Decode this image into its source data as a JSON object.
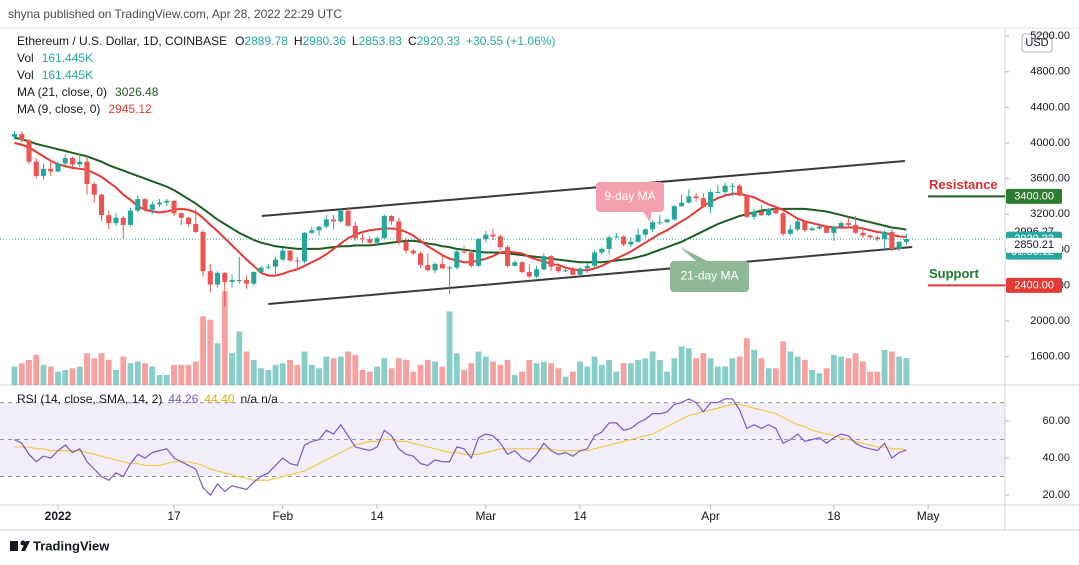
{
  "chart_data": {
    "type": "candlestick",
    "title": "shyna published on TradingView.com, Apr 28, 2022 22:29 UTC",
    "symbol": "Ethereum / U.S. Dollar, 1D, COINBASE",
    "ohlc_keys": [
      "O",
      "H",
      "L",
      "C"
    ],
    "change": "+30.55 (+1.06%)",
    "volume_legend": {
      "label": "Vol",
      "value": "161.445K"
    },
    "ma21_label": "MA (21, close, 0)",
    "ma9_label": "MA (9, close, 0)",
    "rsi_legend": {
      "label": "RSI (14, close, SMA, 14, 2)",
      "sma": "44.40",
      "extra": [
        "n/a",
        "n/a"
      ]
    },
    "currency": "USD",
    "logo": "TradingView",
    "up_color": "#26a69a",
    "down_color": "#ef5350",
    "ma21_color": "#1b5e20",
    "ma9_color": "#e53935",
    "rsi_color": "#7e57c2",
    "rsi_sma_color": "#f2c94c",
    "ohlc": [
      [
        4070,
        4130,
        4040,
        4100
      ],
      [
        4100,
        4130,
        4010,
        4030
      ],
      [
        4030,
        4040,
        3760,
        3790
      ],
      [
        3790,
        3830,
        3600,
        3630
      ],
      [
        3630,
        3770,
        3590,
        3710
      ],
      [
        3710,
        3810,
        3630,
        3680
      ],
      [
        3680,
        3790,
        3670,
        3770
      ],
      [
        3770,
        3870,
        3720,
        3830
      ],
      [
        3830,
        3850,
        3700,
        3760
      ],
      [
        3760,
        3880,
        3730,
        3790
      ],
      [
        3790,
        3850,
        3420,
        3540
      ],
      [
        3540,
        3560,
        3330,
        3420
      ],
      [
        3420,
        3430,
        3120,
        3190
      ],
      [
        3190,
        3240,
        3030,
        3100
      ],
      [
        3100,
        3210,
        3070,
        3160
      ],
      [
        3160,
        3180,
        2930,
        3080
      ],
      [
        3080,
        3270,
        3060,
        3240
      ],
      [
        3240,
        3410,
        3220,
        3370
      ],
      [
        3370,
        3380,
        3230,
        3250
      ],
      [
        3250,
        3340,
        3200,
        3310
      ],
      [
        3310,
        3370,
        3280,
        3330
      ],
      [
        3330,
        3370,
        3290,
        3350
      ],
      [
        3350,
        3360,
        3180,
        3210
      ],
      [
        3210,
        3220,
        3080,
        3160
      ],
      [
        3160,
        3170,
        3060,
        3090
      ],
      [
        3090,
        3260,
        2990,
        3000
      ],
      [
        3000,
        3020,
        2500,
        2560
      ],
      [
        2560,
        2640,
        2320,
        2410
      ],
      [
        2410,
        2560,
        2380,
        2540
      ],
      [
        2540,
        2550,
        2160,
        2440
      ],
      [
        2440,
        2520,
        2380,
        2460
      ],
      [
        2460,
        2720,
        2420,
        2460
      ],
      [
        2460,
        2510,
        2360,
        2420
      ],
      [
        2420,
        2560,
        2400,
        2550
      ],
      [
        2550,
        2620,
        2530,
        2600
      ],
      [
        2600,
        2640,
        2580,
        2610
      ],
      [
        2610,
        2720,
        2530,
        2690
      ],
      [
        2690,
        2820,
        2670,
        2790
      ],
      [
        2790,
        2800,
        2660,
        2680
      ],
      [
        2680,
        2720,
        2590,
        2670
      ],
      [
        2670,
        3000,
        2650,
        2990
      ],
      [
        2990,
        3060,
        2980,
        3020
      ],
      [
        3020,
        3070,
        2960,
        3060
      ],
      [
        3060,
        3190,
        3040,
        3140
      ],
      [
        3140,
        3190,
        3030,
        3120
      ],
      [
        3120,
        3260,
        3100,
        3240
      ],
      [
        3240,
        3280,
        3060,
        3070
      ],
      [
        3070,
        3110,
        2900,
        2930
      ],
      [
        2930,
        2980,
        2880,
        2920
      ],
      [
        2920,
        2950,
        2850,
        2880
      ],
      [
        2880,
        2950,
        2840,
        2930
      ],
      [
        2930,
        3200,
        2920,
        3180
      ],
      [
        3180,
        3190,
        3080,
        3120
      ],
      [
        3120,
        3160,
        2860,
        2890
      ],
      [
        2890,
        2930,
        2760,
        2790
      ],
      [
        2790,
        2810,
        2740,
        2760
      ],
      [
        2760,
        2780,
        2600,
        2630
      ],
      [
        2630,
        2760,
        2560,
        2570
      ],
      [
        2570,
        2660,
        2540,
        2640
      ],
      [
        2640,
        2740,
        2590,
        2590
      ],
      [
        2590,
        2620,
        2300,
        2600
      ],
      [
        2600,
        2800,
        2580,
        2780
      ],
      [
        2780,
        2840,
        2760,
        2770
      ],
      [
        2770,
        2800,
        2600,
        2620
      ],
      [
        2620,
        2930,
        2610,
        2920
      ],
      [
        2920,
        3010,
        2880,
        2970
      ],
      [
        2970,
        3040,
        2910,
        2950
      ],
      [
        2950,
        2970,
        2800,
        2830
      ],
      [
        2830,
        2850,
        2600,
        2620
      ],
      [
        2620,
        2680,
        2610,
        2660
      ],
      [
        2660,
        2670,
        2540,
        2550
      ],
      [
        2550,
        2640,
        2480,
        2500
      ],
      [
        2500,
        2620,
        2480,
        2580
      ],
      [
        2580,
        2760,
        2570,
        2730
      ],
      [
        2730,
        2740,
        2560,
        2610
      ],
      [
        2610,
        2650,
        2540,
        2560
      ],
      [
        2560,
        2600,
        2550,
        2570
      ],
      [
        2570,
        2610,
        2510,
        2520
      ],
      [
        2520,
        2600,
        2500,
        2590
      ],
      [
        2590,
        2650,
        2540,
        2620
      ],
      [
        2620,
        2790,
        2600,
        2770
      ],
      [
        2770,
        2830,
        2750,
        2810
      ],
      [
        2810,
        2960,
        2750,
        2940
      ],
      [
        2940,
        2990,
        2930,
        2950
      ],
      [
        2950,
        2960,
        2840,
        2860
      ],
      [
        2860,
        2940,
        2830,
        2890
      ],
      [
        2890,
        3040,
        2880,
        2970
      ],
      [
        2970,
        3040,
        2940,
        3030
      ],
      [
        3030,
        3130,
        3000,
        3110
      ],
      [
        3110,
        3190,
        3080,
        3110
      ],
      [
        3110,
        3150,
        3100,
        3140
      ],
      [
        3140,
        3300,
        3130,
        3290
      ],
      [
        3290,
        3420,
        3280,
        3330
      ],
      [
        3330,
        3480,
        3320,
        3400
      ],
      [
        3400,
        3440,
        3340,
        3380
      ],
      [
        3380,
        3440,
        3270,
        3280
      ],
      [
        3280,
        3470,
        3210,
        3450
      ],
      [
        3450,
        3530,
        3440,
        3450
      ],
      [
        3450,
        3550,
        3420,
        3520
      ],
      [
        3520,
        3550,
        3400,
        3520
      ],
      [
        3520,
        3540,
        3400,
        3410
      ],
      [
        3410,
        3420,
        3160,
        3170
      ],
      [
        3170,
        3260,
        3140,
        3230
      ],
      [
        3230,
        3300,
        3180,
        3190
      ],
      [
        3190,
        3270,
        3180,
        3260
      ],
      [
        3260,
        3300,
        3200,
        3210
      ],
      [
        3210,
        3230,
        2950,
        2980
      ],
      [
        2980,
        3080,
        2960,
        3030
      ],
      [
        3030,
        3140,
        3010,
        3120
      ],
      [
        3120,
        3130,
        3000,
        3020
      ],
      [
        3020,
        3060,
        3010,
        3040
      ],
      [
        3040,
        3080,
        3030,
        3060
      ],
      [
        3060,
        3080,
        2990,
        2990
      ],
      [
        2990,
        3070,
        2900,
        3060
      ],
      [
        3060,
        3120,
        3030,
        3100
      ],
      [
        3100,
        3170,
        3040,
        3080
      ],
      [
        3080,
        3180,
        2980,
        2990
      ],
      [
        2990,
        3030,
        2930,
        2960
      ],
      [
        2960,
        2970,
        2920,
        2940
      ],
      [
        2940,
        2960,
        2900,
        2920
      ],
      [
        2920,
        3020,
        2800,
        3000
      ],
      [
        3000,
        3030,
        2780,
        2810
      ],
      [
        2810,
        2900,
        2790,
        2889.78
      ],
      [
        2889.78,
        2980.36,
        2853.83,
        2920.33
      ]
    ],
    "volume": [
      110,
      130,
      150,
      180,
      120,
      110,
      80,
      90,
      100,
      110,
      190,
      160,
      190,
      150,
      90,
      170,
      130,
      140,
      130,
      110,
      60,
      60,
      120,
      120,
      120,
      140,
      410,
      390,
      250,
      560,
      190,
      320,
      200,
      150,
      100,
      90,
      120,
      130,
      150,
      120,
      200,
      120,
      100,
      170,
      160,
      170,
      200,
      180,
      90,
      80,
      110,
      160,
      100,
      160,
      150,
      80,
      120,
      150,
      140,
      110,
      440,
      190,
      90,
      130,
      200,
      170,
      140,
      120,
      150,
      60,
      80,
      150,
      130,
      140,
      130,
      100,
      50,
      80,
      140,
      110,
      170,
      120,
      150,
      80,
      130,
      130,
      150,
      160,
      200,
      150,
      80,
      160,
      230,
      220,
      160,
      190,
      160,
      110,
      110,
      160,
      170,
      280,
      210,
      160,
      100,
      100,
      260,
      200,
      170,
      150,
      90,
      70,
      100,
      180,
      170,
      160,
      190,
      140,
      80,
      80,
      210,
      200,
      170,
      161.445
    ],
    "ma21": [
      4060,
      4040,
      4020,
      3990,
      3970,
      3950,
      3930,
      3910,
      3890,
      3870,
      3850,
      3820,
      3790,
      3750,
      3720,
      3690,
      3660,
      3630,
      3600,
      3570,
      3540,
      3510,
      3470,
      3420,
      3370,
      3320,
      3260,
      3200,
      3140,
      3090,
      3040,
      2990,
      2950,
      2910,
      2880,
      2860,
      2840,
      2830,
      2820,
      2810,
      2810,
      2810,
      2810,
      2820,
      2830,
      2840,
      2840,
      2850,
      2850,
      2850,
      2860,
      2870,
      2880,
      2890,
      2900,
      2900,
      2890,
      2870,
      2860,
      2840,
      2830,
      2810,
      2800,
      2790,
      2780,
      2770,
      2770,
      2770,
      2760,
      2750,
      2740,
      2730,
      2720,
      2710,
      2700,
      2690,
      2680,
      2670,
      2660,
      2660,
      2660,
      2660,
      2670,
      2680,
      2690,
      2700,
      2720,
      2740,
      2770,
      2800,
      2830,
      2860,
      2890,
      2930,
      2970,
      3010,
      3050,
      3090,
      3120,
      3150,
      3180,
      3200,
      3220,
      3240,
      3250,
      3260,
      3260,
      3260,
      3260,
      3260,
      3250,
      3240,
      3230,
      3210,
      3190,
      3170,
      3150,
      3130,
      3110,
      3090,
      3070,
      3050,
      3040,
      3026.48
    ],
    "ma9": [
      4000,
      3980,
      3950,
      3900,
      3850,
      3800,
      3760,
      3740,
      3720,
      3710,
      3700,
      3660,
      3620,
      3560,
      3500,
      3420,
      3360,
      3290,
      3250,
      3230,
      3220,
      3230,
      3250,
      3260,
      3250,
      3220,
      3160,
      3080,
      3010,
      2930,
      2850,
      2770,
      2690,
      2620,
      2540,
      2510,
      2510,
      2530,
      2560,
      2580,
      2620,
      2660,
      2700,
      2750,
      2810,
      2870,
      2930,
      2970,
      3000,
      3020,
      3030,
      3040,
      3040,
      3030,
      3000,
      2960,
      2900,
      2840,
      2790,
      2740,
      2700,
      2680,
      2660,
      2660,
      2680,
      2700,
      2730,
      2770,
      2780,
      2770,
      2760,
      2720,
      2690,
      2670,
      2640,
      2630,
      2600,
      2580,
      2570,
      2570,
      2590,
      2620,
      2660,
      2700,
      2740,
      2780,
      2830,
      2880,
      2930,
      2980,
      3020,
      3070,
      3120,
      3170,
      3230,
      3290,
      3340,
      3380,
      3410,
      3430,
      3430,
      3410,
      3390,
      3350,
      3310,
      3280,
      3250,
      3200,
      3150,
      3120,
      3100,
      3080,
      3060,
      3050,
      3050,
      3050,
      3050,
      3040,
      3020,
      3000,
      2990,
      2970,
      2950,
      2945.12
    ],
    "rsi": [
      50,
      48,
      42,
      38,
      41,
      40,
      44,
      47,
      43,
      45,
      38,
      34,
      30,
      28,
      32,
      30,
      37,
      42,
      40,
      43,
      44,
      45,
      40,
      38,
      36,
      34,
      24,
      20,
      26,
      22,
      25,
      24,
      23,
      27,
      30,
      32,
      36,
      40,
      37,
      36,
      47,
      49,
      50,
      55,
      53,
      58,
      52,
      46,
      45,
      44,
      46,
      55,
      52,
      45,
      42,
      41,
      37,
      36,
      39,
      38,
      38,
      46,
      45,
      40,
      51,
      53,
      52,
      48,
      42,
      44,
      40,
      38,
      42,
      48,
      44,
      42,
      43,
      41,
      44,
      45,
      52,
      54,
      59,
      59,
      55,
      56,
      59,
      61,
      64,
      64,
      65,
      69,
      70,
      72,
      70,
      65,
      70,
      70,
      72,
      72,
      66,
      56,
      58,
      56,
      58,
      56,
      48,
      50,
      53,
      49,
      50,
      51,
      48,
      51,
      53,
      52,
      48,
      46,
      45,
      44,
      48,
      40,
      43,
      44.26
    ],
    "rsi_sma": [
      46,
      46,
      46,
      45,
      45,
      44,
      44,
      44,
      44,
      44,
      43,
      42,
      41,
      40,
      39,
      38,
      37,
      37,
      36,
      36,
      36,
      37,
      38,
      38,
      38,
      37,
      36,
      34,
      33,
      32,
      31,
      30,
      29,
      28,
      28,
      28,
      29,
      30,
      31,
      32,
      33,
      35,
      37,
      39,
      41,
      43,
      45,
      47,
      48,
      49,
      49,
      50,
      50,
      49,
      49,
      48,
      47,
      46,
      45,
      44,
      43,
      43,
      42,
      42,
      42,
      43,
      44,
      45,
      45,
      45,
      45,
      45,
      45,
      45,
      45,
      44,
      44,
      44,
      44,
      44,
      45,
      46,
      47,
      48,
      49,
      50,
      51,
      52,
      53,
      55,
      57,
      59,
      61,
      63,
      64,
      65,
      66,
      67,
      68,
      69,
      69,
      68,
      67,
      66,
      65,
      64,
      62,
      60,
      58,
      57,
      55,
      54,
      53,
      52,
      51,
      50,
      49,
      48,
      47,
      46,
      46,
      45,
      45,
      44.4
    ],
    "xlim": [
      -2,
      136.6
    ],
    "xticks": [
      {
        "value": 6,
        "label": "2022"
      },
      {
        "value": 22,
        "label": "17"
      },
      {
        "value": 37,
        "label": "Feb"
      },
      {
        "value": 50,
        "label": "14"
      },
      {
        "value": 65,
        "label": "Mar"
      },
      {
        "value": 78,
        "label": "14"
      },
      {
        "value": 96,
        "label": "Apr"
      },
      {
        "value": 113,
        "label": "18"
      },
      {
        "value": 126,
        "label": "May"
      }
    ],
    "ylim": [
      1281,
      5292
    ],
    "yticks": [
      {
        "value": 1600,
        "label": "1600.00"
      },
      {
        "value": 2000,
        "label": "2000.00"
      },
      {
        "value": 2400,
        "label": "2400.00"
      },
      {
        "value": 2800,
        "label": "2800.00"
      },
      {
        "value": 3200,
        "label": "3200.00"
      },
      {
        "value": 3600,
        "label": "3600.00"
      },
      {
        "value": 4000,
        "label": "4000.00"
      },
      {
        "value": 4400,
        "label": "4400.00"
      },
      {
        "value": 4800,
        "label": "4800.00"
      },
      {
        "value": 5200,
        "label": "5200.00"
      }
    ],
    "volume_lim": [
      0,
      2134
    ],
    "rsi_ylim": [
      14.6,
      79.5
    ],
    "rsi_yticks": [
      {
        "value": 20,
        "label": "20.00"
      },
      {
        "value": 40,
        "label": "40.00"
      },
      {
        "value": 60,
        "label": "60.00"
      }
    ],
    "rsi_bands": [
      30,
      50,
      70
    ],
    "grid": false,
    "badges": [
      {
        "value": 3400,
        "label": "3400.00",
        "bg": "#2e7d32",
        "fg": "#ffffff"
      },
      {
        "value": 2996.27,
        "label": "2996.27",
        "bg": "#ffffff",
        "fg": "#131722"
      },
      {
        "value": 2920.33,
        "label": "2920.33",
        "bg": "#26a69a",
        "fg": "#ffffff",
        "countdown": "01:30:12"
      },
      {
        "value": 2850.21,
        "label": "2850.21",
        "bg": "#ffffff",
        "fg": "#131722"
      },
      {
        "value": 2400,
        "label": "2400.00",
        "bg": "#e53935",
        "fg": "#ffffff"
      }
    ],
    "levels": [
      {
        "name": "Resistance",
        "value": 3400,
        "line_color": "#1b5e20",
        "text_color": "#d32f2f"
      },
      {
        "name": "Support",
        "value": 2400,
        "line_color": "#e53935",
        "text_color": "#1b7a2f"
      }
    ],
    "trendlines": [
      {
        "x": [
          34.1,
          122.8
        ],
        "y": [
          3180,
          3798
        ]
      },
      {
        "x": [
          35,
          123.8
        ],
        "y": [
          2191,
          2831
        ]
      }
    ],
    "annotations": [
      "9-day MA",
      "21-day MA"
    ]
  }
}
